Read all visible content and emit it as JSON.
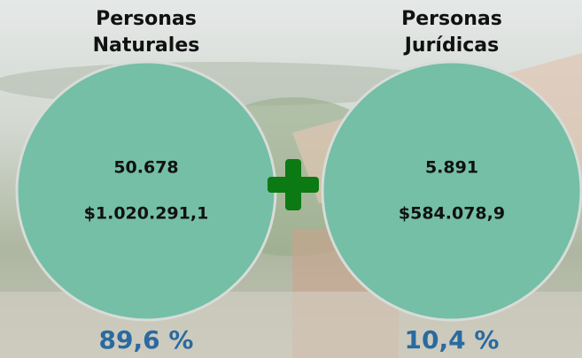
{
  "items": [
    {
      "title_lines": [
        "Personas",
        "Naturales"
      ],
      "count": "50.678",
      "amount": "$1.020.291,1",
      "percent": "89,6 %"
    },
    {
      "title_lines": [
        "Personas",
        "Jurídicas"
      ],
      "count": "5.891",
      "amount": "$584.078,9",
      "percent": "10,4 %"
    }
  ]
}
